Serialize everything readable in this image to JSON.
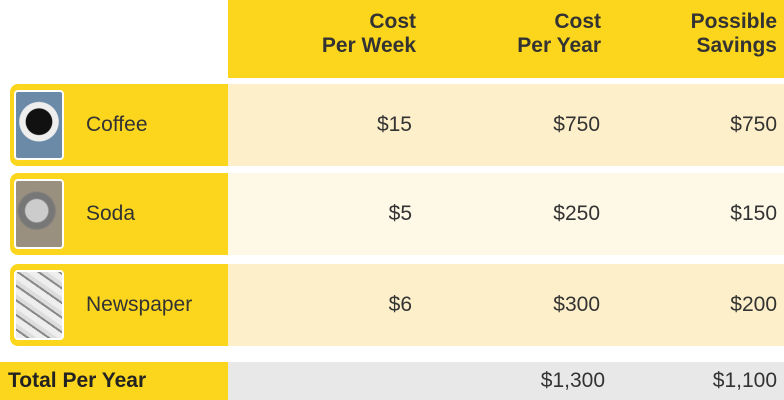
{
  "table": {
    "headers": [
      [
        "Cost",
        "Per Week"
      ],
      [
        "Cost",
        "Per Year"
      ],
      [
        "Possible",
        "Savings"
      ]
    ],
    "rows": [
      [
        "Coffee",
        "$15",
        "$750",
        "$750"
      ],
      [
        "Soda",
        "$5",
        "$250",
        "$150"
      ],
      [
        "Newspaper",
        "$6",
        "$300",
        "$200"
      ]
    ],
    "total": [
      "Total Per Year",
      "$1,300",
      "$1,100"
    ]
  }
}
